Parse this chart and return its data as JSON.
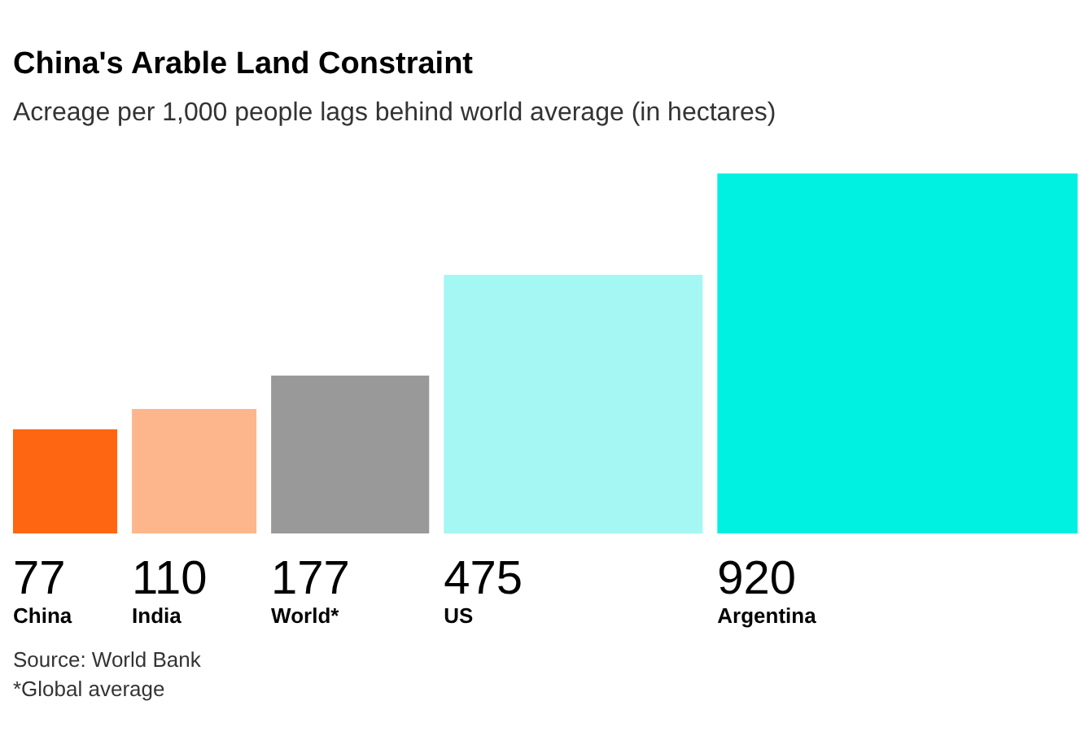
{
  "chart_data": {
    "type": "other",
    "title": "China's Arable Land Constraint",
    "subtitle": "Acreage per 1,000 people lags behind world average (in hectares)",
    "categories": [
      "China",
      "India",
      "World*",
      "US",
      "Argentina"
    ],
    "values": [
      77,
      110,
      177,
      475,
      920
    ],
    "colors": [
      "#ff6611",
      "#fdb58c",
      "#999999",
      "#a5f7f3",
      "#00f0e1"
    ],
    "data_labels": true,
    "annotations": [
      "Source: World Bank",
      "*Global average"
    ]
  }
}
